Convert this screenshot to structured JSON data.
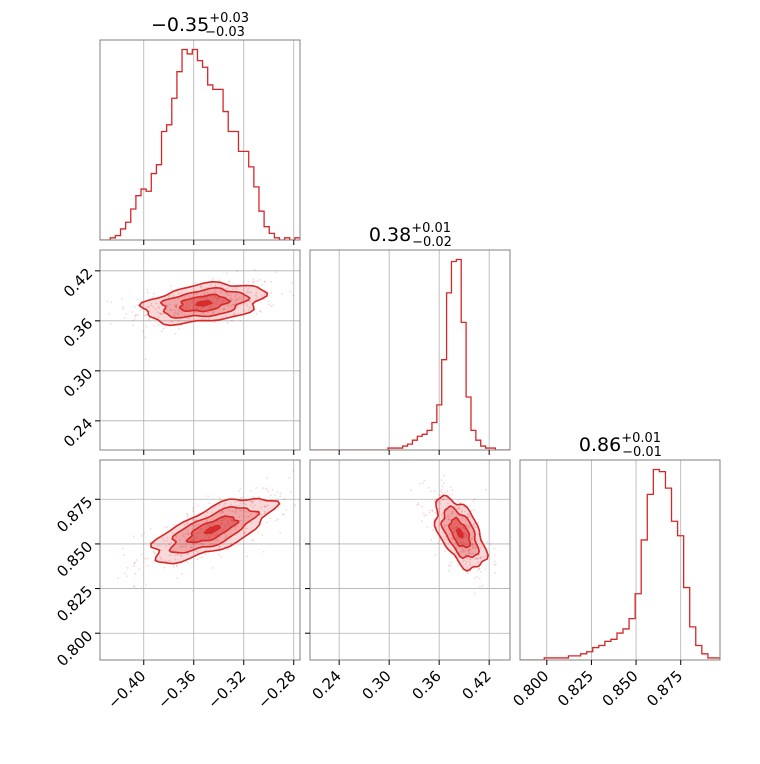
{
  "chart_data": {
    "type": "corner",
    "color": "#d62728",
    "grid": true,
    "panel_titles": [
      {
        "main": "−0.35",
        "sup": "+0.03",
        "sub": "−0.03"
      },
      {
        "main": "0.38",
        "sup": "+0.01",
        "sub": "−0.02"
      },
      {
        "main": "0.86",
        "sup": "+0.01",
        "sub": "−0.01"
      }
    ],
    "params": [
      {
        "range": [
          -0.435,
          -0.275
        ],
        "ticks": [
          -0.4,
          -0.36,
          -0.32,
          -0.28
        ],
        "tick_labels": [
          "−0.40",
          "−0.36",
          "−0.32",
          "−0.28"
        ]
      },
      {
        "range": [
          0.205,
          0.445
        ],
        "ticks": [
          0.24,
          0.3,
          0.36,
          0.42
        ],
        "tick_labels": [
          "0.24",
          "0.30",
          "0.36",
          "0.42"
        ]
      },
      {
        "range": [
          0.785,
          0.897
        ],
        "ticks": [
          0.8,
          0.825,
          0.85,
          0.875
        ],
        "tick_labels": [
          "0.800",
          "0.825",
          "0.850",
          "0.875"
        ]
      }
    ],
    "histograms": [
      {
        "param": 0,
        "counts": [
          0,
          0,
          1,
          2,
          5,
          8,
          14,
          20,
          23,
          22,
          30,
          34,
          49,
          52,
          64,
          76,
          86,
          84,
          86,
          81,
          78,
          70,
          68,
          68,
          58,
          49,
          49,
          40,
          40,
          33,
          24,
          13,
          6,
          3,
          1,
          0,
          1,
          0,
          1
        ]
      },
      {
        "param": 1,
        "counts": [
          0,
          0,
          0,
          0,
          0,
          0,
          0,
          0,
          0,
          0,
          0,
          0,
          0,
          0,
          0,
          0,
          1,
          1,
          1,
          2,
          3,
          5,
          7,
          8,
          10,
          14,
          23,
          46,
          80,
          96,
          97,
          65,
          27,
          10,
          5,
          2,
          1,
          1,
          0,
          0,
          0
        ]
      },
      {
        "param": 2,
        "counts": [
          0,
          0,
          0,
          0,
          1,
          1,
          1,
          1,
          2,
          2,
          3,
          4,
          6,
          7,
          9,
          10,
          13,
          15,
          20,
          32,
          58,
          80,
          92,
          91,
          83,
          67,
          60,
          35,
          16,
          7,
          3,
          1,
          1
        ]
      }
    ],
    "contours_2d": [
      {
        "x_param": 0,
        "y_param": 1,
        "center": [
          -0.352,
          0.381
        ],
        "sigma": [
          0.024,
          0.012
        ],
        "rho": 0.35
      },
      {
        "x_param": 0,
        "y_param": 2,
        "center": [
          -0.345,
          0.858
        ],
        "sigma": [
          0.024,
          0.009
        ],
        "rho": 0.72
      },
      {
        "x_param": 1,
        "y_param": 2,
        "center": [
          0.385,
          0.856
        ],
        "sigma": [
          0.015,
          0.01
        ],
        "rho": -0.55
      }
    ]
  }
}
